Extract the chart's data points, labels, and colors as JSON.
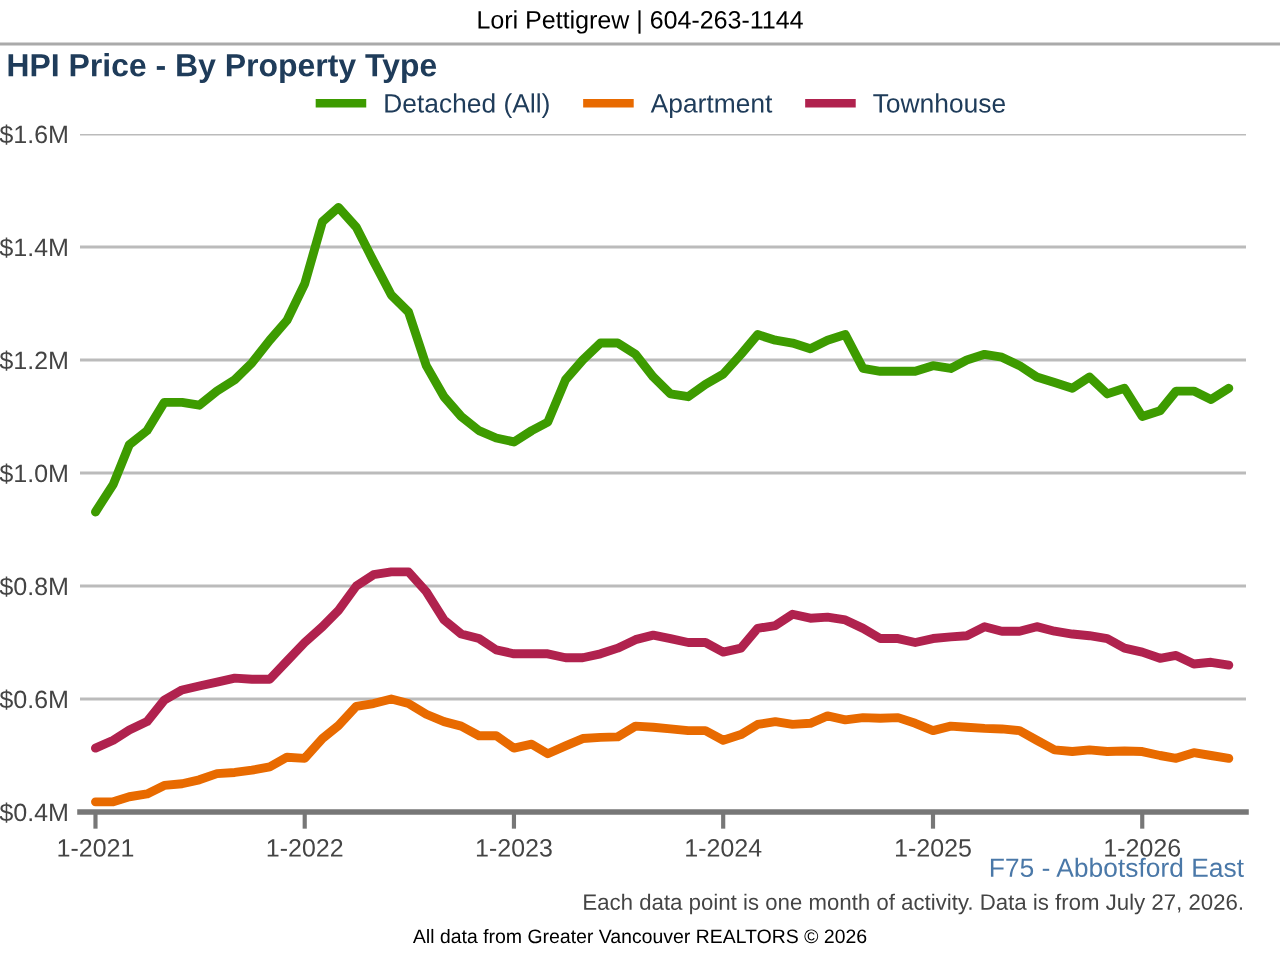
{
  "chart_data": {
    "type": "line",
    "title": "HPI Price - By Property Type",
    "annotations": [
      "Lori Pettigrew | 604-263-1144",
      "F75 - Abbotsford East",
      "Each data point is one month of activity. Data is from July 27, 2026.",
      "All data from Greater Vancouver REALTORS © 2026"
    ],
    "x": [
      "2021-01",
      "2021-02",
      "2021-03",
      "2021-04",
      "2021-05",
      "2021-06",
      "2021-07",
      "2021-08",
      "2021-09",
      "2021-10",
      "2021-11",
      "2021-12",
      "2022-01",
      "2022-02",
      "2022-03",
      "2022-04",
      "2022-05",
      "2022-06",
      "2022-07",
      "2022-08",
      "2022-09",
      "2022-10",
      "2022-11",
      "2022-12",
      "2023-01",
      "2023-02",
      "2023-03",
      "2023-04",
      "2023-05",
      "2023-06",
      "2023-07",
      "2023-08",
      "2023-09",
      "2023-10",
      "2023-11",
      "2023-12",
      "2024-01",
      "2024-02",
      "2024-03",
      "2024-04",
      "2024-05",
      "2024-06",
      "2024-07",
      "2024-08",
      "2024-09",
      "2024-10",
      "2024-11",
      "2024-12",
      "2025-01",
      "2025-02",
      "2025-03",
      "2025-04",
      "2025-05",
      "2025-06",
      "2025-07",
      "2025-08",
      "2025-09",
      "2025-10",
      "2025-11",
      "2025-12",
      "2026-01",
      "2026-02",
      "2026-03",
      "2026-04",
      "2026-05",
      "2026-06"
    ],
    "series": [
      {
        "name": "Detached (All)",
        "color": "#3d9b00",
        "values": [
          0.931,
          0.98,
          1.05,
          1.075,
          1.125,
          1.125,
          1.12,
          1.145,
          1.165,
          1.195,
          1.235,
          1.27,
          1.335,
          1.445,
          1.47,
          1.435,
          1.375,
          1.315,
          1.285,
          1.19,
          1.135,
          1.1,
          1.075,
          1.062,
          1.055,
          1.075,
          1.09,
          1.165,
          1.2,
          1.23,
          1.23,
          1.21,
          1.17,
          1.14,
          1.135,
          1.157,
          1.175,
          1.21,
          1.245,
          1.235,
          1.23,
          1.22,
          1.235,
          1.245,
          1.185,
          1.18,
          1.18,
          1.18,
          1.19,
          1.185,
          1.2,
          1.21,
          1.205,
          1.19,
          1.17,
          1.16,
          1.15,
          1.17,
          1.14,
          1.15,
          1.1,
          1.11,
          1.145,
          1.145,
          1.13,
          1.15
        ]
      },
      {
        "name": "Apartment",
        "color": "#e86a00",
        "values": [
          0.418,
          0.418,
          0.427,
          0.432,
          0.447,
          0.45,
          0.457,
          0.468,
          0.47,
          0.474,
          0.48,
          0.497,
          0.495,
          0.53,
          0.553,
          0.587,
          0.592,
          0.6,
          0.592,
          0.573,
          0.56,
          0.552,
          0.535,
          0.535,
          0.513,
          0.52,
          0.503,
          0.517,
          0.53,
          0.532,
          0.533,
          0.552,
          0.55,
          0.547,
          0.544,
          0.544,
          0.527,
          0.537,
          0.555,
          0.56,
          0.555,
          0.557,
          0.57,
          0.563,
          0.567,
          0.566,
          0.567,
          0.557,
          0.544,
          0.552,
          0.55,
          0.548,
          0.547,
          0.544,
          0.527,
          0.51,
          0.507,
          0.51,
          0.507,
          0.508,
          0.507,
          0.5,
          0.495,
          0.505,
          0.5,
          0.495
        ]
      },
      {
        "name": "Townhouse",
        "color": "#b0224e",
        "values": [
          0.513,
          0.527,
          0.545,
          0.56,
          0.598,
          0.616,
          0.623,
          0.63,
          0.637,
          0.635,
          0.635,
          0.667,
          0.7,
          0.728,
          0.757,
          0.8,
          0.82,
          0.825,
          0.825,
          0.79,
          0.74,
          0.715,
          0.707,
          0.687,
          0.68,
          0.68,
          0.68,
          0.673,
          0.673,
          0.68,
          0.69,
          0.705,
          0.713,
          0.707,
          0.7,
          0.7,
          0.683,
          0.69,
          0.725,
          0.73,
          0.75,
          0.743,
          0.745,
          0.74,
          0.725,
          0.707,
          0.707,
          0.7,
          0.707,
          0.71,
          0.712,
          0.728,
          0.72,
          0.72,
          0.728,
          0.72,
          0.715,
          0.712,
          0.707,
          0.69,
          0.683,
          0.672,
          0.677,
          0.662,
          0.665,
          0.66
        ]
      }
    ],
    "xlim": [
      "2020-12-05",
      "2026-07-01"
    ],
    "xticks": [
      {
        "value": "2021-01",
        "label": "1-2021"
      },
      {
        "value": "2022-01",
        "label": "1-2022"
      },
      {
        "value": "2023-01",
        "label": "1-2023"
      },
      {
        "value": "2024-01",
        "label": "1-2024"
      },
      {
        "value": "2025-01",
        "label": "1-2025"
      },
      {
        "value": "2026-01",
        "label": "1-2026"
      }
    ],
    "ylim": [
      0.4,
      1.6
    ],
    "yticks": [
      {
        "value": 0.4,
        "label": "$0.4M"
      },
      {
        "value": 0.6,
        "label": "$0.6M"
      },
      {
        "value": 0.8,
        "label": "$0.8M"
      },
      {
        "value": 1.0,
        "label": "$1.0M"
      },
      {
        "value": 1.2,
        "label": "$1.2M"
      },
      {
        "value": 1.4,
        "label": "$1.4M"
      },
      {
        "value": 1.6,
        "label": "$1.6M"
      }
    ],
    "grid": "y",
    "legend": "top",
    "marker": "none",
    "line_style": "solid"
  }
}
